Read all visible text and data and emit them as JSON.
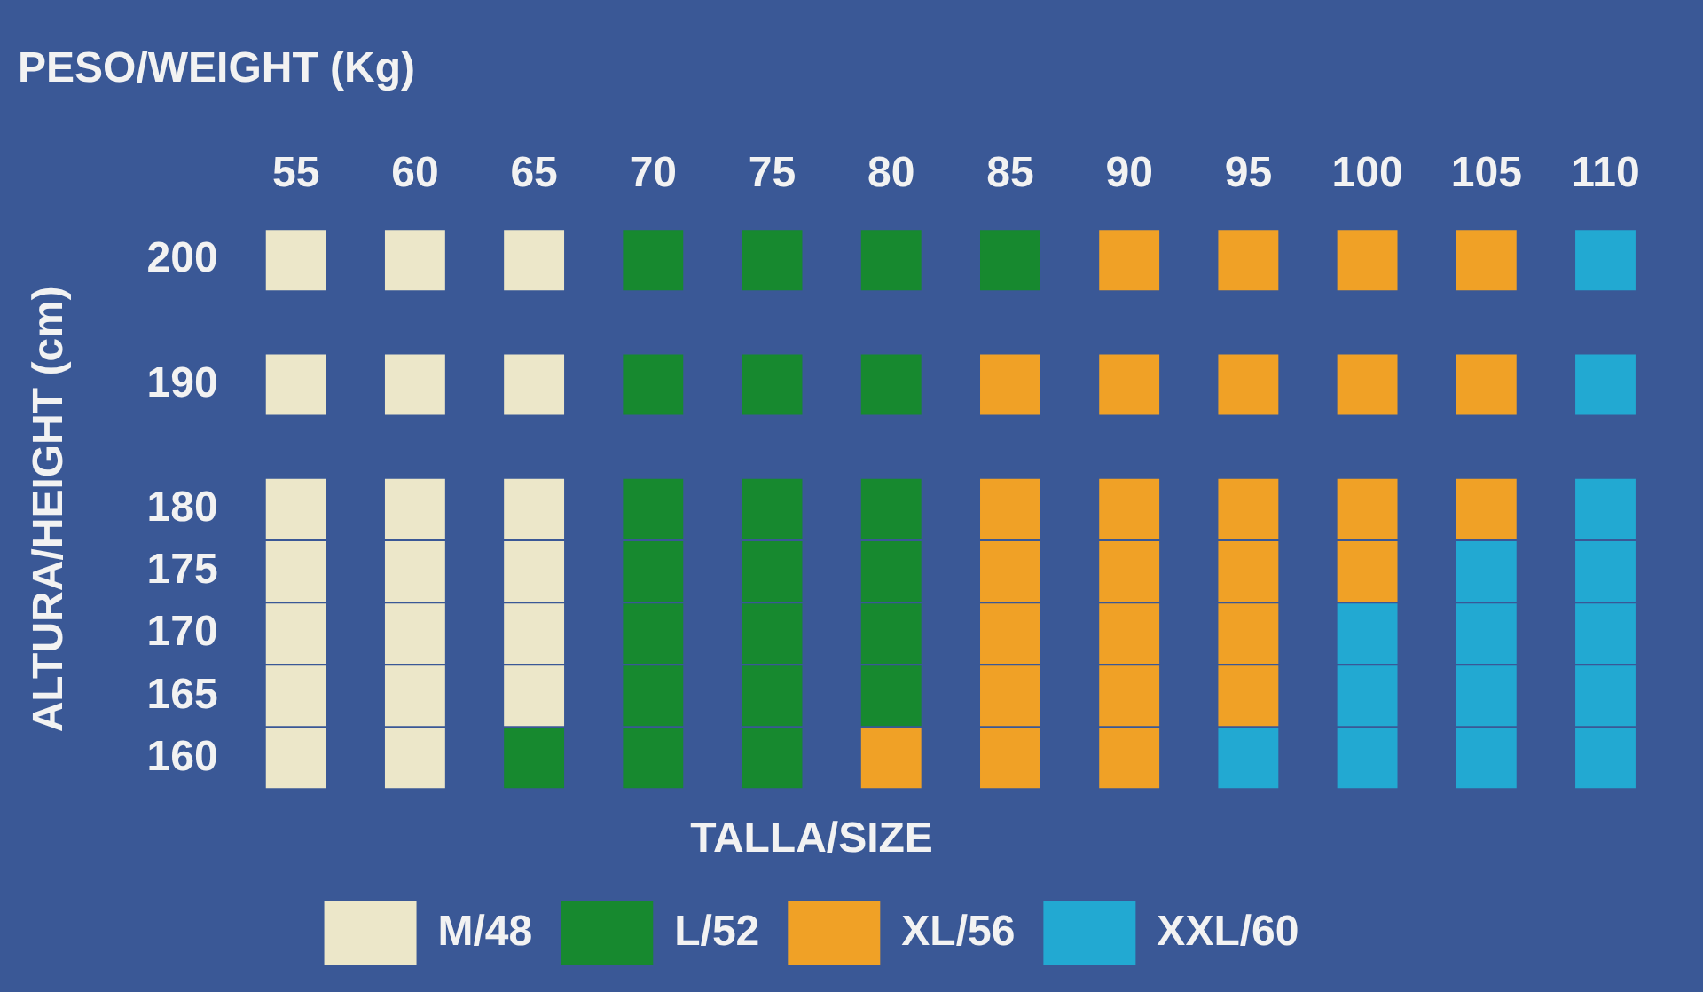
{
  "chart_data": {
    "type": "scatter",
    "title": "PESO/WEIGHT (Kg)",
    "ylabel": "ALTURA/HEIGHT (cm)",
    "legend_title": "TALLA/SIZE",
    "legend": "bottom",
    "grid": false,
    "marker": "square",
    "xlim": [
      55,
      110
    ],
    "xticks": [
      55,
      60,
      65,
      70,
      75,
      80,
      85,
      90,
      95,
      100,
      105,
      110
    ],
    "ylim": [
      160,
      200
    ],
    "yticks": [
      160,
      165,
      170,
      175,
      180,
      190,
      200
    ],
    "series": [
      {
        "name": "M/48",
        "color": "#ece7c9",
        "x": [
          55,
          60,
          65,
          55,
          60,
          65,
          55,
          60,
          65,
          55,
          60,
          65,
          55,
          60,
          65,
          55,
          60,
          65,
          55,
          60
        ],
        "values": [
          200,
          200,
          200,
          190,
          190,
          190,
          180,
          180,
          180,
          175,
          175,
          175,
          170,
          170,
          170,
          165,
          165,
          165,
          160,
          160
        ]
      },
      {
        "name": "L/52",
        "color": "#17892f",
        "x": [
          70,
          75,
          80,
          85,
          70,
          75,
          80,
          70,
          75,
          80,
          70,
          75,
          80,
          70,
          75,
          80,
          70,
          75,
          80,
          65,
          70,
          75
        ],
        "values": [
          200,
          200,
          200,
          200,
          190,
          190,
          190,
          180,
          180,
          180,
          175,
          175,
          175,
          170,
          170,
          170,
          165,
          165,
          165,
          160,
          160,
          160
        ]
      },
      {
        "name": "XL/56",
        "color": "#f0a126",
        "x": [
          90,
          95,
          100,
          105,
          85,
          90,
          95,
          100,
          105,
          85,
          90,
          95,
          100,
          105,
          85,
          90,
          95,
          100,
          85,
          90,
          95,
          85,
          90,
          95,
          80,
          85,
          90
        ],
        "values": [
          200,
          200,
          200,
          200,
          190,
          190,
          190,
          190,
          190,
          180,
          180,
          180,
          180,
          180,
          175,
          175,
          175,
          175,
          170,
          170,
          170,
          165,
          165,
          165,
          160,
          160,
          160
        ]
      },
      {
        "name": "XXL/60",
        "color": "#22a9d2",
        "x": [
          110,
          110,
          110,
          105,
          110,
          100,
          105,
          110,
          100,
          105,
          110,
          95,
          100,
          105,
          110
        ],
        "values": [
          200,
          190,
          180,
          175,
          175,
          170,
          170,
          170,
          165,
          165,
          165,
          160,
          160,
          160,
          160
        ]
      }
    ]
  }
}
